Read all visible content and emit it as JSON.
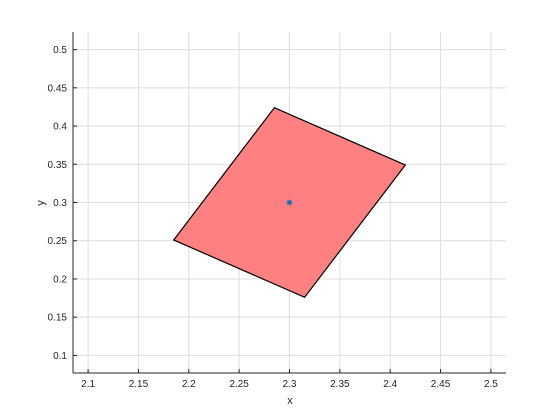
{
  "chart_data": {
    "type": "scatter",
    "title": "",
    "xlabel": "x",
    "ylabel": "y",
    "xlim": [
      2.085,
      2.515
    ],
    "ylim": [
      0.077,
      0.523
    ],
    "grid": true,
    "x_ticks": [
      2.1,
      2.15,
      2.2,
      2.25,
      2.3,
      2.35,
      2.4,
      2.45,
      2.5
    ],
    "x_tick_labels": [
      "2.1",
      "2.15",
      "2.2",
      "2.25",
      "2.3",
      "2.35",
      "2.4",
      "2.45",
      "2.5"
    ],
    "y_ticks": [
      0.1,
      0.15,
      0.2,
      0.25,
      0.3,
      0.35,
      0.4,
      0.45,
      0.5
    ],
    "y_tick_labels": [
      "0.1",
      "0.15",
      "0.2",
      "0.25",
      "0.3",
      "0.35",
      "0.4",
      "0.45",
      "0.5"
    ],
    "polygon": {
      "vertices": [
        {
          "x": 2.185,
          "y": 0.251
        },
        {
          "x": 2.285,
          "y": 0.424
        },
        {
          "x": 2.415,
          "y": 0.349
        },
        {
          "x": 2.315,
          "y": 0.176
        }
      ],
      "fill_color": "#ff8080",
      "edge_color": "#000000"
    },
    "center_point": {
      "x": 2.3,
      "y": 0.3,
      "marker": "asterisk",
      "color": "#0072bd"
    }
  }
}
